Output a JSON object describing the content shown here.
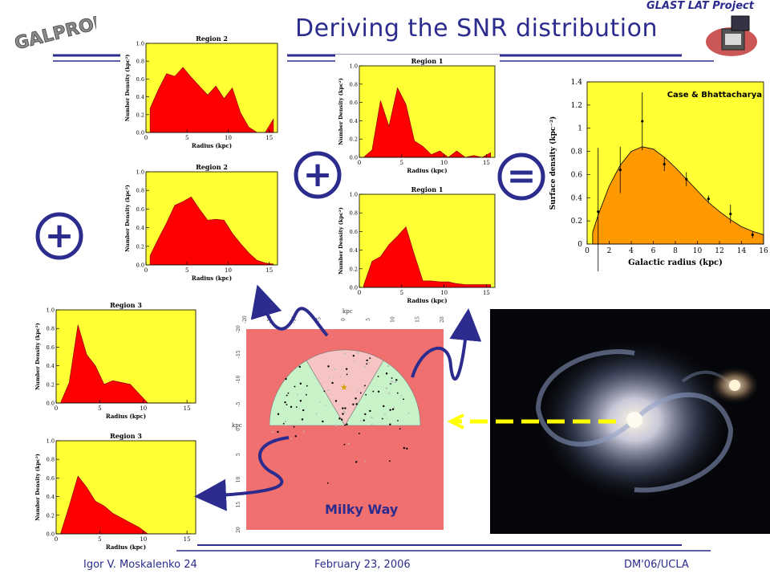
{
  "header": {
    "title": "Deriving the SNR distribution",
    "project": "GLAST LAT Project",
    "logo_text": "GALPROP"
  },
  "footer": {
    "author": "Igor V. Moskalenko  24",
    "date": "February 23, 2006",
    "venue": "DM'06/UCLA"
  },
  "operators": {
    "plus": "+",
    "equals": "="
  },
  "milky_way_label": "Milky Way",
  "case_label": "Case & Bhattacharya",
  "colors": {
    "accent": "#2b2c8e",
    "plot_bg": "#ffff33",
    "fill": "#ff0000",
    "orange": "#ff9900",
    "map_bg": "#f07070"
  },
  "chart_data": [
    {
      "type": "area",
      "title": "Region 2",
      "xlabel": "Radius (kpc)",
      "ylabel": "Number Density (kpc²)",
      "xlim": [
        0,
        16
      ],
      "ylim": [
        0,
        1.0
      ],
      "xticks": [
        "0",
        "5",
        "10",
        "15"
      ],
      "yticks": [
        "0.0",
        "0.2",
        "0.4",
        "0.6",
        "0.8",
        "1.0"
      ],
      "x": [
        0.5,
        1.5,
        2.5,
        3.5,
        4.5,
        5.5,
        6.5,
        7.5,
        8.5,
        9.5,
        10.5,
        11.5,
        12.5,
        13.5,
        14.5,
        15.5
      ],
      "values": [
        0.27,
        0.48,
        0.66,
        0.63,
        0.73,
        0.62,
        0.52,
        0.42,
        0.52,
        0.38,
        0.5,
        0.22,
        0.06,
        0.0,
        0.0,
        0.15
      ]
    },
    {
      "type": "area",
      "title": "Region 2",
      "xlabel": "Radius (kpc)",
      "ylabel": "Number Density (kpc²)",
      "xlim": [
        0,
        16
      ],
      "ylim": [
        0,
        1.0
      ],
      "xticks": [
        "0",
        "5",
        "10",
        "15"
      ],
      "yticks": [
        "0.0",
        "0.2",
        "0.4",
        "0.6",
        "0.8",
        "1.0"
      ],
      "x": [
        0.5,
        1.5,
        2.5,
        3.5,
        4.5,
        5.5,
        6.5,
        7.5,
        8.5,
        9.5,
        10.5,
        11.5,
        12.5,
        13.5,
        14.5,
        15.5
      ],
      "values": [
        0.1,
        0.28,
        0.45,
        0.64,
        0.68,
        0.73,
        0.6,
        0.48,
        0.49,
        0.48,
        0.34,
        0.23,
        0.13,
        0.05,
        0.02,
        0.01
      ]
    },
    {
      "type": "area",
      "title": "Region 1",
      "xlabel": "Radius (kpc)",
      "ylabel": "Number Density (kpc²)",
      "xlim": [
        0,
        16
      ],
      "ylim": [
        0,
        1.0
      ],
      "xticks": [
        "0",
        "5",
        "10",
        "15"
      ],
      "yticks": [
        "0.0",
        "0.2",
        "0.4",
        "0.6",
        "0.8",
        "1.0"
      ],
      "x": [
        0.5,
        1.5,
        2.5,
        3.5,
        4.5,
        5.5,
        6.5,
        7.5,
        8.5,
        9.5,
        10.5,
        11.5,
        12.5,
        13.5,
        14.5,
        15.5
      ],
      "values": [
        0.0,
        0.08,
        0.62,
        0.34,
        0.76,
        0.58,
        0.18,
        0.12,
        0.03,
        0.07,
        0.0,
        0.07,
        0.0,
        0.02,
        0.0,
        0.05
      ]
    },
    {
      "type": "area",
      "title": "Region 1",
      "xlabel": "Radius (kpc)",
      "ylabel": "Number Density (kpc²)",
      "xlim": [
        0,
        16
      ],
      "ylim": [
        0,
        1.0
      ],
      "xticks": [
        "0",
        "5",
        "10",
        "15"
      ],
      "yticks": [
        "0.0",
        "0.2",
        "0.4",
        "0.6",
        "0.8",
        "1.0"
      ],
      "x": [
        0.5,
        1.5,
        2.5,
        3.5,
        4.5,
        5.5,
        6.5,
        7.5,
        8.5,
        9.5,
        10.5,
        11.5,
        12.5,
        13.5,
        14.5,
        15.5
      ],
      "values": [
        0.02,
        0.28,
        0.33,
        0.46,
        0.55,
        0.65,
        0.35,
        0.07,
        0.07,
        0.06,
        0.06,
        0.04,
        0.03,
        0.03,
        0.03,
        0.03
      ]
    },
    {
      "type": "area",
      "title": "Region 3",
      "xlabel": "Radius (kpc)",
      "ylabel": "Number Density (kpc²)",
      "xlim": [
        0,
        16
      ],
      "ylim": [
        0,
        1.0
      ],
      "xticks": [
        "0",
        "5",
        "10",
        "15"
      ],
      "yticks": [
        "0.0",
        "0.2",
        "0.4",
        "0.6",
        "0.8",
        "1.0"
      ],
      "x": [
        0.5,
        1.5,
        2.5,
        3.5,
        4.5,
        5.5,
        6.5,
        7.5,
        8.5,
        9.5,
        10.5,
        11.5,
        12.5,
        13.5,
        14.5,
        15.5
      ],
      "values": [
        0.0,
        0.22,
        0.84,
        0.52,
        0.4,
        0.2,
        0.24,
        0.22,
        0.2,
        0.1,
        0.0,
        0.0,
        0.0,
        0.0,
        0.0,
        0.0
      ]
    },
    {
      "type": "area",
      "title": "Region 3",
      "xlabel": "Radius (kpc)",
      "ylabel": "Number Density (kpc²)",
      "xlim": [
        0,
        16
      ],
      "ylim": [
        0,
        1.0
      ],
      "xticks": [
        "0",
        "5",
        "10",
        "15"
      ],
      "yticks": [
        "0.0",
        "0.2",
        "0.4",
        "0.6",
        "0.8",
        "1.0"
      ],
      "x": [
        0.5,
        1.5,
        2.5,
        3.5,
        4.5,
        5.5,
        6.5,
        7.5,
        8.5,
        9.5,
        10.5,
        11.5,
        12.5,
        13.5,
        14.5,
        15.5
      ],
      "values": [
        0.0,
        0.3,
        0.62,
        0.5,
        0.35,
        0.3,
        0.22,
        0.17,
        0.12,
        0.07,
        0.0,
        0.0,
        0.0,
        0.0,
        0.0,
        0.0
      ]
    },
    {
      "type": "area",
      "title": "",
      "xlabel": "Galactic radius (kpc)",
      "ylabel": "Surface density (kpc⁻²)",
      "xlim": [
        0,
        16
      ],
      "ylim": [
        0,
        1.4
      ],
      "xticks": [
        "0",
        "2",
        "4",
        "6",
        "8",
        "10",
        "12",
        "14",
        "16"
      ],
      "yticks": [
        "0",
        "0.2",
        "0.4",
        "0.6",
        "0.8",
        "1",
        "1.2",
        "1.4"
      ],
      "x": [
        0.5,
        1,
        2,
        3,
        4,
        5,
        6,
        7,
        8,
        9,
        10,
        11,
        12,
        13,
        14,
        15,
        16
      ],
      "values": [
        0.1,
        0.25,
        0.5,
        0.68,
        0.8,
        0.84,
        0.82,
        0.75,
        0.66,
        0.56,
        0.46,
        0.36,
        0.28,
        0.21,
        0.15,
        0.11,
        0.08
      ],
      "points": [
        {
          "x": 1,
          "y": 0.28,
          "err": 0.55
        },
        {
          "x": 3,
          "y": 0.64,
          "err": 0.2
        },
        {
          "x": 5,
          "y": 1.06,
          "err": 0.25
        },
        {
          "x": 7,
          "y": 0.69,
          "err": 0.06
        },
        {
          "x": 9,
          "y": 0.56,
          "err": 0.06
        },
        {
          "x": 11,
          "y": 0.39,
          "err": 0.03
        },
        {
          "x": 13,
          "y": 0.26,
          "err": 0.08
        },
        {
          "x": 15,
          "y": 0.08,
          "err": 0.03
        }
      ]
    }
  ],
  "map": {
    "top_axis_label": "kpc",
    "side_axis_label": "kpc",
    "x_ticks": [
      "-20",
      "-15",
      "-10",
      "-5",
      "0",
      "5",
      "10",
      "15",
      "20"
    ],
    "y_ticks": [
      "-20",
      "-15",
      "-10",
      "-5",
      "0",
      "5",
      "10",
      "15",
      "20"
    ]
  }
}
